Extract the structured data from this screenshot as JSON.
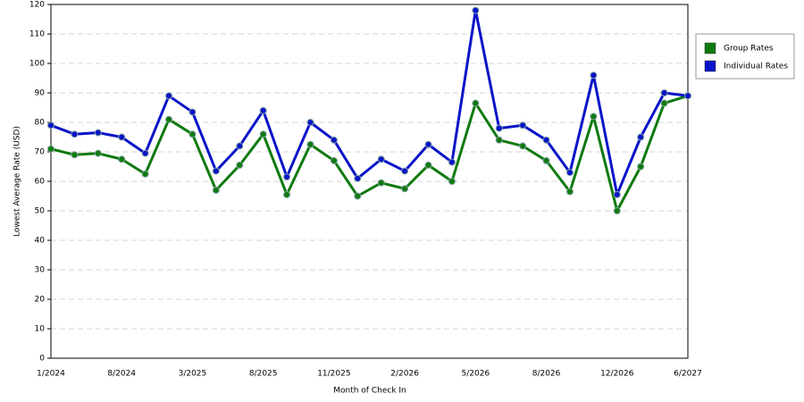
{
  "chart_data": {
    "type": "line",
    "x_label": "Month of Check In",
    "y_label": "Lowest Average Rate (USD)",
    "categories": [
      "1/2024",
      null,
      null,
      "8/2024",
      null,
      null,
      "3/2025",
      null,
      null,
      "8/2025",
      null,
      null,
      "11/2025",
      null,
      null,
      "2/2026",
      null,
      null,
      "5/2026",
      null,
      null,
      "8/2026",
      null,
      null,
      "12/2026",
      null,
      null,
      "6/2027"
    ],
    "series": [
      {
        "name": "Group Rates",
        "color": "#0f7a0f",
        "values": [
          71,
          69,
          69.5,
          67.5,
          62.5,
          81,
          76,
          57,
          65.5,
          76,
          55.5,
          72.5,
          67,
          55,
          59.5,
          57.5,
          65.5,
          60,
          86.5,
          74,
          72,
          67,
          56.5,
          82,
          50,
          65,
          86.5,
          89
        ]
      },
      {
        "name": "Individual Rates",
        "color": "#0a14c8",
        "values": [
          79,
          76,
          76.5,
          75,
          69.5,
          89,
          83.5,
          63.5,
          72,
          84,
          61.5,
          80,
          74,
          61,
          67.5,
          63.5,
          72.5,
          66.5,
          118,
          78,
          79,
          74,
          63,
          96,
          55.5,
          75,
          90,
          89
        ]
      }
    ],
    "ylim": [
      0,
      120
    ],
    "yticks": [
      0,
      10,
      20,
      30,
      40,
      50,
      60,
      70,
      80,
      90,
      100,
      110,
      120
    ],
    "grid": true,
    "legend": "right"
  }
}
